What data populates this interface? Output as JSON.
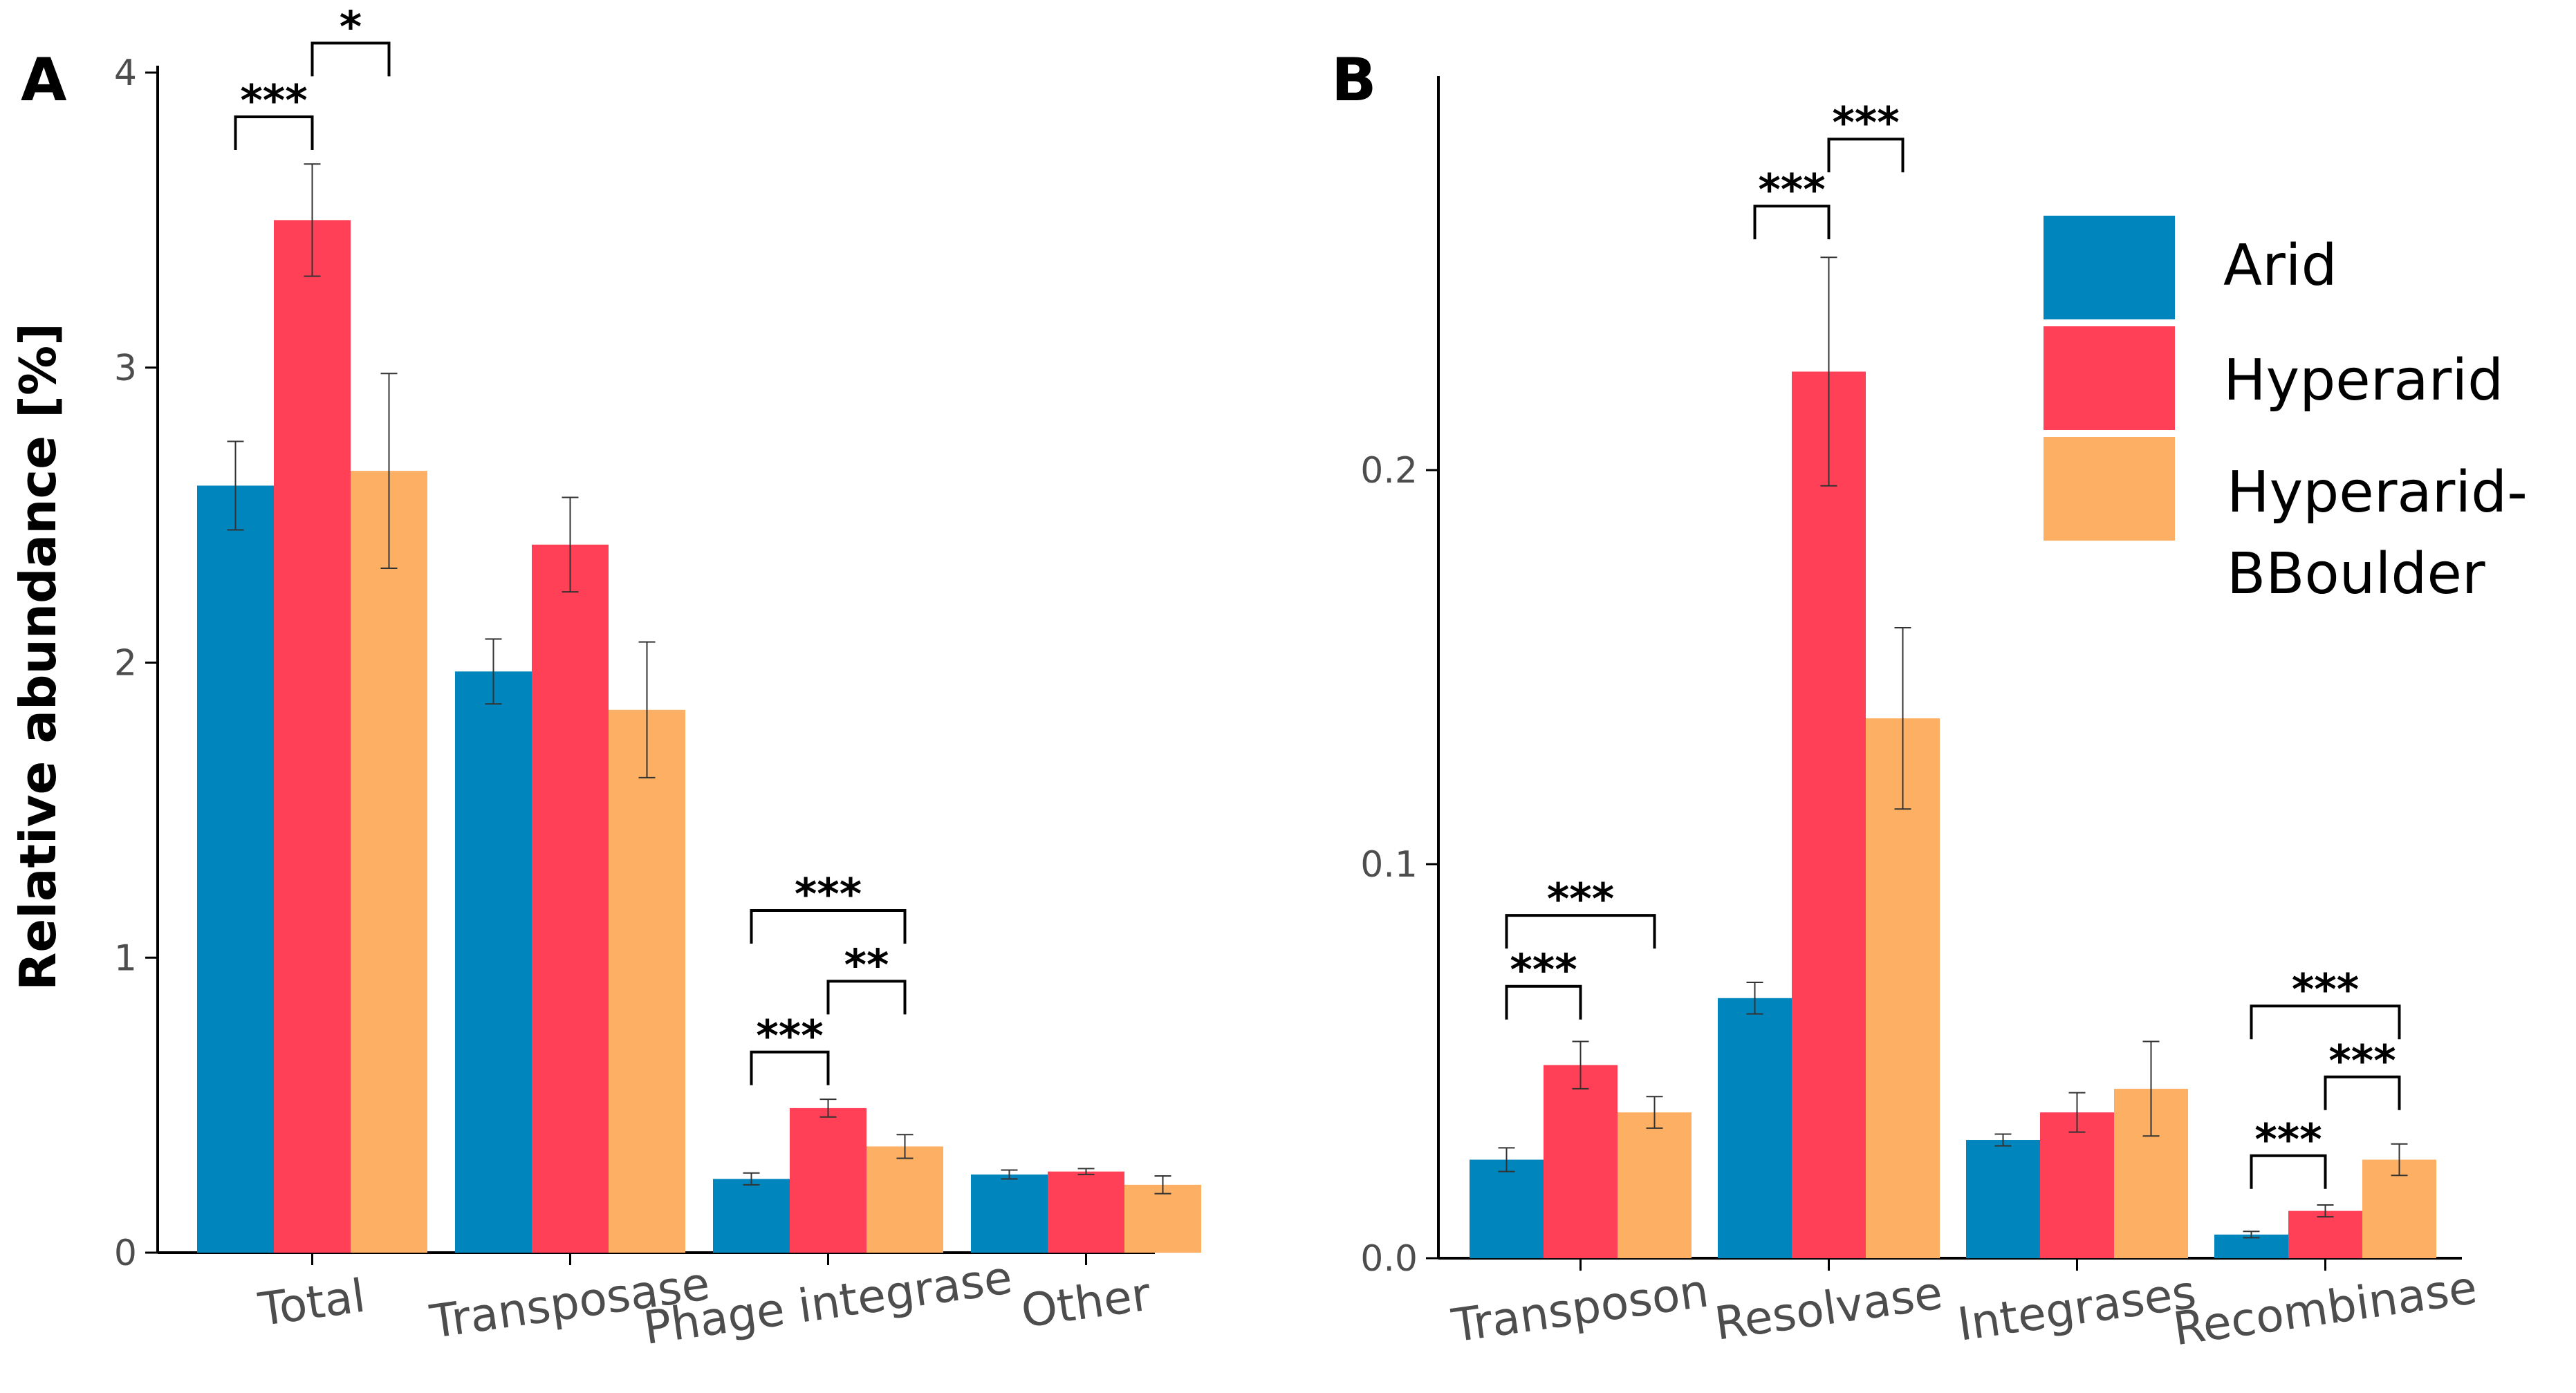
{
  "legend": {
    "items": [
      {
        "name": "Arid",
        "color": "#0085BD"
      },
      {
        "name": "Hyperarid",
        "color": "#FF4057"
      },
      {
        "name": "Hyperarid-BBoulder",
        "lines": [
          "Hyperarid-",
          "BBoulder"
        ],
        "color": "#FDB064"
      }
    ]
  },
  "chart_data": [
    {
      "panel": "A",
      "type": "bar",
      "ylabel": "Relative abundance [%]",
      "ylim": [
        0,
        4
      ],
      "yticks": [
        "0",
        "1",
        "2",
        "3",
        "4"
      ],
      "categories": [
        "Total",
        "Transposase",
        "Phage integrase",
        "Other"
      ],
      "series": [
        {
          "name": "Arid",
          "color": "#0085BD",
          "values": [
            2.6,
            1.97,
            0.25,
            0.265
          ],
          "errors": [
            0.15,
            0.11,
            0.02,
            0.015
          ]
        },
        {
          "name": "Hyperarid",
          "color": "#FF4057",
          "values": [
            3.5,
            2.4,
            0.49,
            0.275
          ],
          "errors": [
            0.19,
            0.16,
            0.03,
            0.01
          ]
        },
        {
          "name": "Hyperarid-BBoulder",
          "color": "#FDB064",
          "values": [
            2.65,
            1.84,
            0.36,
            0.23
          ],
          "errors": [
            0.33,
            0.23,
            0.04,
            0.03
          ]
        }
      ],
      "significance": [
        {
          "category": 0,
          "from": 0,
          "to": 1,
          "label": "***",
          "level": 3.85
        },
        {
          "category": 0,
          "from": 1,
          "to": 2,
          "label": "*",
          "level": 4.1
        },
        {
          "category": 2,
          "from": 0,
          "to": 1,
          "label": "***",
          "level": 0.68
        },
        {
          "category": 2,
          "from": 1,
          "to": 2,
          "label": "**",
          "level": 0.92
        },
        {
          "category": 2,
          "from": 0,
          "to": 2,
          "label": "***",
          "level": 1.16
        }
      ]
    },
    {
      "panel": "B",
      "type": "bar",
      "ylabel": "",
      "ylim": [
        0,
        0.3
      ],
      "yticks": [
        "0.0",
        "0.1",
        "0.2"
      ],
      "categories": [
        "Transposon",
        "Resolvase",
        "Integrases",
        "Recombinase"
      ],
      "series": [
        {
          "name": "Arid",
          "color": "#0085BD",
          "values": [
            0.025,
            0.066,
            0.03,
            0.006
          ],
          "errors": [
            0.003,
            0.004,
            0.0015,
            0.0008
          ]
        },
        {
          "name": "Hyperarid",
          "color": "#FF4057",
          "values": [
            0.049,
            0.225,
            0.037,
            0.012
          ],
          "errors": [
            0.006,
            0.029,
            0.005,
            0.0015
          ]
        },
        {
          "name": "Hyperarid-BBoulder",
          "color": "#FDB064",
          "values": [
            0.037,
            0.137,
            0.043,
            0.025
          ],
          "errors": [
            0.004,
            0.023,
            0.012,
            0.004
          ]
        }
      ],
      "significance": [
        {
          "category": 0,
          "from": 0,
          "to": 1,
          "label": "***",
          "level": 0.069
        },
        {
          "category": 0,
          "from": 0,
          "to": 2,
          "label": "***",
          "level": 0.087
        },
        {
          "category": 1,
          "from": 0,
          "to": 1,
          "label": "***",
          "level": 0.267
        },
        {
          "category": 1,
          "from": 1,
          "to": 2,
          "label": "***",
          "level": 0.284
        },
        {
          "category": 3,
          "from": 0,
          "to": 1,
          "label": "***",
          "level": 0.026
        },
        {
          "category": 3,
          "from": 1,
          "to": 2,
          "label": "***",
          "level": 0.046
        },
        {
          "category": 3,
          "from": 0,
          "to": 2,
          "label": "***",
          "level": 0.064
        }
      ]
    }
  ]
}
